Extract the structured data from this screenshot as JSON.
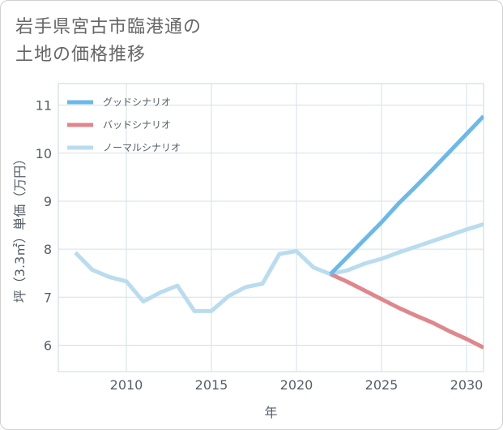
{
  "page": {
    "title_line1": "岩手県宮古市臨港通の",
    "title_line2": "土地の価格推移"
  },
  "chart_data": {
    "type": "line",
    "title": "岩手県宮古市臨港通の土地の価格推移",
    "xlabel": "年",
    "ylabel": "坪（3.3㎡）単価（万円）",
    "xlim": [
      2006,
      2031
    ],
    "ylim": [
      5.45,
      11.45
    ],
    "x_ticks": [
      2010,
      2015,
      2020,
      2025,
      2030
    ],
    "y_ticks": [
      6,
      7,
      8,
      9,
      10,
      11
    ],
    "grid": true,
    "legend_position": "top-left",
    "series": [
      {
        "name": "グッドシナリオ",
        "color": "#6bb9ea",
        "x": [
          2022,
          2023,
          2024,
          2025,
          2026,
          2027,
          2028,
          2029,
          2030,
          2031
        ],
        "y": [
          7.48,
          7.84,
          8.2,
          8.56,
          8.95,
          9.3,
          9.66,
          10.03,
          10.4,
          10.77
        ]
      },
      {
        "name": "バッドシナリオ",
        "color": "#e0878c",
        "x": [
          2022,
          2023,
          2024,
          2025,
          2026,
          2027,
          2028,
          2029,
          2030,
          2031
        ],
        "y": [
          7.48,
          7.32,
          7.14,
          6.96,
          6.78,
          6.62,
          6.47,
          6.29,
          6.13,
          5.95
        ]
      },
      {
        "name": "ノーマルシナリオ",
        "color": "#b9dcef",
        "x": [
          2007,
          2008,
          2009,
          2010,
          2011,
          2012,
          2013,
          2014,
          2015,
          2016,
          2017,
          2018,
          2019,
          2020,
          2021,
          2022,
          2023,
          2024,
          2025,
          2026,
          2027,
          2028,
          2029,
          2030,
          2031
        ],
        "y": [
          7.93,
          7.57,
          7.42,
          7.33,
          6.91,
          7.1,
          7.24,
          6.71,
          6.71,
          7.02,
          7.21,
          7.28,
          7.9,
          7.96,
          7.62,
          7.48,
          7.56,
          7.7,
          7.8,
          7.93,
          8.05,
          8.17,
          8.29,
          8.41,
          8.52
        ]
      }
    ]
  }
}
